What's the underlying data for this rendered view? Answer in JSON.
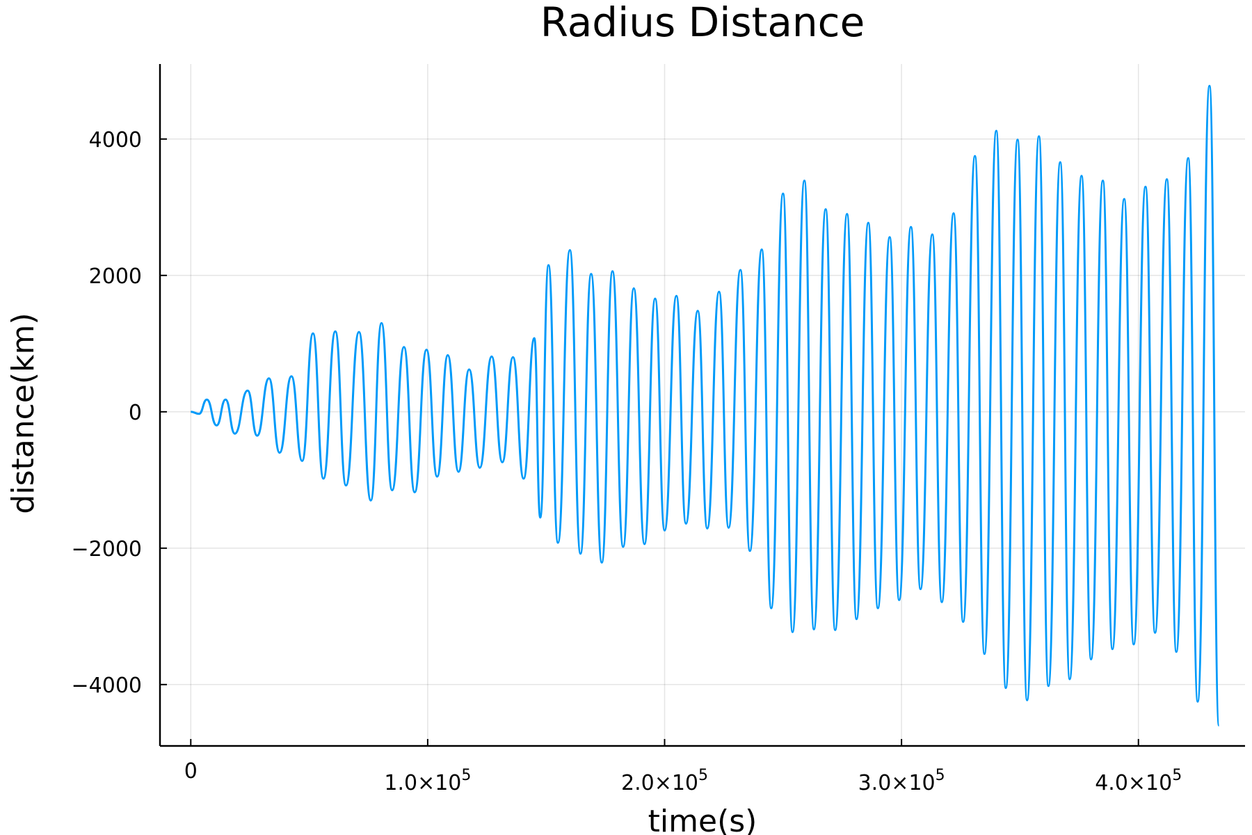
{
  "chart_data": {
    "type": "line",
    "title": "Radius Distance",
    "xlabel": "time(s)",
    "ylabel": "distance(km)",
    "xlim": [
      -13000,
      445000
    ],
    "ylim": [
      -4900,
      5100
    ],
    "grid": true,
    "legend": "none",
    "line_color": "#009af9",
    "x_ticks": [
      {
        "value": 0,
        "mantissa": "0",
        "exponent": ""
      },
      {
        "value": 100000,
        "mantissa": "1.0×10",
        "exponent": "5"
      },
      {
        "value": 200000,
        "mantissa": "2.0×10",
        "exponent": "5"
      },
      {
        "value": 300000,
        "mantissa": "3.0×10",
        "exponent": "5"
      },
      {
        "value": 400000,
        "mantissa": "4.0×10",
        "exponent": "5"
      }
    ],
    "y_ticks": [
      {
        "value": 4000,
        "label": "4000"
      },
      {
        "value": 2000,
        "label": "2000"
      },
      {
        "value": 0,
        "label": "0"
      },
      {
        "value": -2000,
        "label": "−2000"
      },
      {
        "value": -4000,
        "label": "−4000"
      }
    ],
    "series": [
      {
        "x": [
          0,
          3500,
          6800,
          10900,
          14700,
          18600,
          24000,
          28000,
          33000,
          37500,
          42500,
          47000,
          51600,
          56000,
          61000,
          65500,
          71000,
          76000,
          80500,
          85000,
          90000,
          94500,
          99500,
          104000,
          108500,
          113000,
          117500,
          122000,
          127000,
          131500,
          136000,
          140500,
          145000,
          147500,
          151000,
          155000,
          160000,
          164500,
          169000,
          173500,
          178000,
          182500,
          187000,
          191500,
          196000,
          200000,
          205000,
          209000,
          214000,
          218000,
          223000,
          227000,
          232000,
          236000,
          241000,
          245000,
          250000,
          254000,
          259000,
          263000,
          268000,
          272000,
          277000,
          281000,
          286000,
          290000,
          295000,
          299000,
          304000,
          308000,
          313000,
          317000,
          322000,
          326000,
          331000,
          335000,
          340000,
          344000,
          349000,
          353000,
          358000,
          362000,
          367000,
          371000,
          376000,
          380000,
          385000,
          389000,
          394000,
          398000,
          403000,
          407000,
          412000,
          416000,
          421000,
          425000,
          430000,
          434000
        ],
        "y": [
          0,
          -30,
          180,
          -200,
          180,
          -320,
          310,
          -350,
          490,
          -600,
          520,
          -720,
          1150,
          -980,
          1180,
          -1080,
          1170,
          -1300,
          1300,
          -1150,
          950,
          -1180,
          910,
          -950,
          830,
          -880,
          620,
          -820,
          810,
          -740,
          800,
          -980,
          1080,
          -1550,
          2150,
          -1920,
          2370,
          -2080,
          2020,
          -2210,
          2060,
          -1980,
          1810,
          -1940,
          1660,
          -1740,
          1700,
          -1640,
          1480,
          -1710,
          1760,
          -1700,
          2080,
          -2040,
          2380,
          -2880,
          3200,
          -3230,
          3390,
          -3190,
          2970,
          -3200,
          2900,
          -3040,
          2770,
          -2880,
          2560,
          -2760,
          2710,
          -2600,
          2600,
          -2790,
          2910,
          -3080,
          3750,
          -3550,
          4120,
          -4050,
          3990,
          -4230,
          4040,
          -4020,
          3660,
          -3920,
          3460,
          -3630,
          3390,
          -3480,
          3120,
          -3410,
          3300,
          -3240,
          3410,
          -3520,
          3720,
          -4250,
          4780,
          -4600
        ]
      }
    ]
  }
}
